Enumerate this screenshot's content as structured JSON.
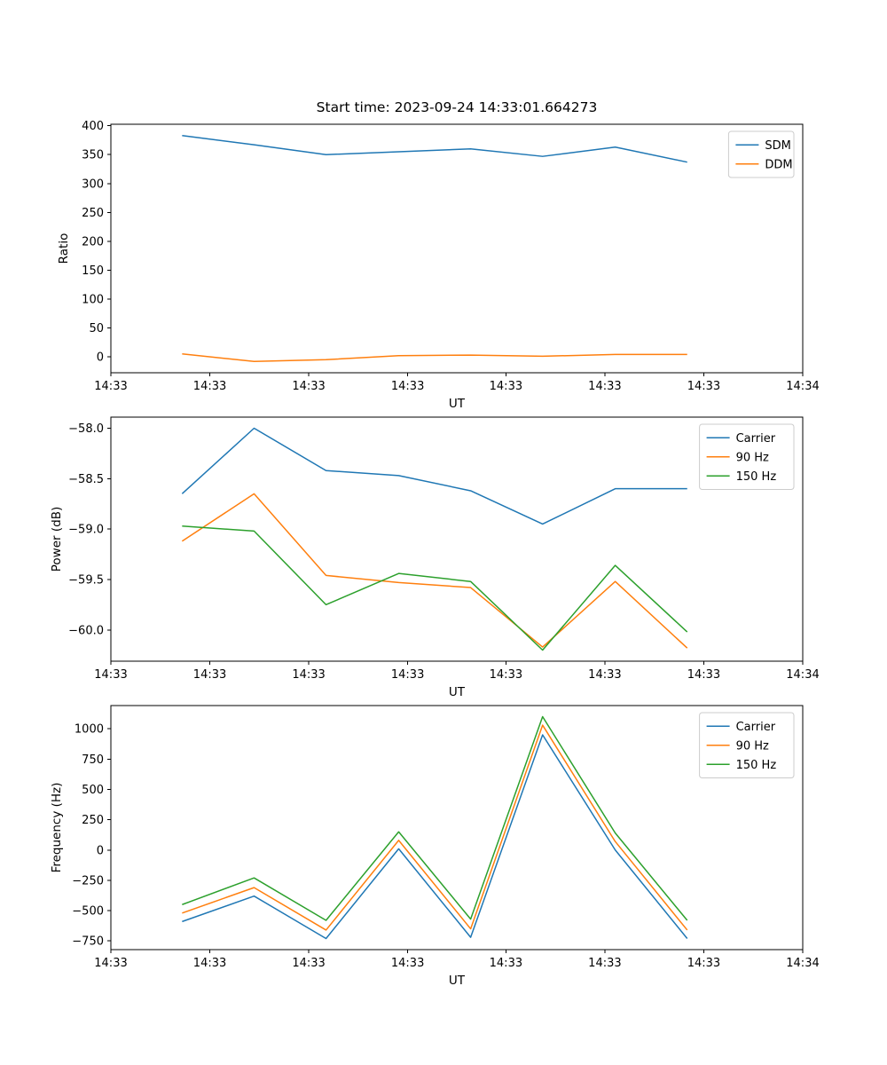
{
  "figure": {
    "title": "Start time: 2023-09-24 14:33:01.664273"
  },
  "chart_data": [
    {
      "type": "line",
      "title": "Start time: 2023-09-24 14:33:01.664273",
      "xlabel": "UT",
      "ylabel": "Ratio",
      "legend_position": "upper right",
      "xlim": [
        0,
        1
      ],
      "ylim": [
        -27.6,
        402.6
      ],
      "x_tick_pos": [
        0,
        0.143,
        0.286,
        0.429,
        0.571,
        0.714,
        0.857,
        1
      ],
      "x_tick_labels": [
        "14:33",
        "14:33",
        "14:33",
        "14:33",
        "14:33",
        "14:33",
        "14:33",
        "14:34"
      ],
      "y_ticks": [
        0,
        50,
        100,
        150,
        200,
        250,
        300,
        350,
        400
      ],
      "y_tick_labels": [
        "0",
        "50",
        "100",
        "150",
        "200",
        "250",
        "300",
        "350",
        "400"
      ],
      "x": [
        0.103,
        0.207,
        0.311,
        0.416,
        0.52,
        0.624,
        0.729,
        0.833
      ],
      "series": [
        {
          "name": "SDM",
          "color": "#1f77b4",
          "values": [
            383,
            367,
            350,
            355,
            360,
            347,
            363,
            337
          ]
        },
        {
          "name": "DDM",
          "color": "#ff7f0e",
          "values": [
            5,
            -8,
            -5,
            2,
            3,
            1,
            4,
            4
          ]
        }
      ]
    },
    {
      "type": "line",
      "title": "",
      "xlabel": "UT",
      "ylabel": "Power (dB)",
      "legend_position": "upper right",
      "xlim": [
        0,
        1
      ],
      "ylim": [
        -60.31,
        -57.89
      ],
      "x_tick_pos": [
        0,
        0.143,
        0.286,
        0.429,
        0.571,
        0.714,
        0.857,
        1
      ],
      "x_tick_labels": [
        "14:33",
        "14:33",
        "14:33",
        "14:33",
        "14:33",
        "14:33",
        "14:33",
        "14:34"
      ],
      "y_ticks": [
        -60.0,
        -59.5,
        -59.0,
        -58.5,
        -58.0
      ],
      "y_tick_labels": [
        "−60.0",
        "−59.5",
        "−59.0",
        "−58.5",
        "−58.0"
      ],
      "x": [
        0.103,
        0.207,
        0.311,
        0.416,
        0.52,
        0.624,
        0.729,
        0.833
      ],
      "series": [
        {
          "name": "Carrier",
          "color": "#1f77b4",
          "values": [
            -58.65,
            -58.0,
            -58.42,
            -58.47,
            -58.62,
            -58.95,
            -58.6,
            -58.6
          ]
        },
        {
          "name": "90 Hz",
          "color": "#ff7f0e",
          "values": [
            -59.12,
            -58.65,
            -59.46,
            -59.53,
            -59.58,
            -60.17,
            -59.52,
            -60.18
          ]
        },
        {
          "name": "150 Hz",
          "color": "#2ca02c",
          "values": [
            -58.97,
            -59.02,
            -59.75,
            -59.44,
            -59.52,
            -60.2,
            -59.36,
            -60.02
          ]
        }
      ]
    },
    {
      "type": "line",
      "title": "",
      "xlabel": "UT",
      "ylabel": "Frequency (Hz)",
      "legend_position": "upper right",
      "xlim": [
        0,
        1
      ],
      "ylim": [
        -821.5,
        1191.5
      ],
      "x_tick_pos": [
        0,
        0.143,
        0.286,
        0.429,
        0.571,
        0.714,
        0.857,
        1
      ],
      "x_tick_labels": [
        "14:33",
        "14:33",
        "14:33",
        "14:33",
        "14:33",
        "14:33",
        "14:33",
        "14:34"
      ],
      "y_ticks": [
        -750,
        -500,
        -250,
        0,
        250,
        500,
        750,
        1000
      ],
      "y_tick_labels": [
        "−750",
        "−500",
        "−250",
        "0",
        "250",
        "500",
        "750",
        "1000"
      ],
      "x": [
        0.103,
        0.207,
        0.311,
        0.416,
        0.52,
        0.624,
        0.729,
        0.833
      ],
      "series": [
        {
          "name": "Carrier",
          "color": "#1f77b4",
          "values": [
            -590,
            -380,
            -730,
            10,
            -720,
            950,
            0,
            -730
          ]
        },
        {
          "name": "90 Hz",
          "color": "#ff7f0e",
          "values": [
            -520,
            -310,
            -660,
            80,
            -650,
            1030,
            70,
            -660
          ]
        },
        {
          "name": "150 Hz",
          "color": "#2ca02c",
          "values": [
            -450,
            -230,
            -580,
            150,
            -570,
            1100,
            140,
            -580
          ]
        }
      ]
    }
  ]
}
